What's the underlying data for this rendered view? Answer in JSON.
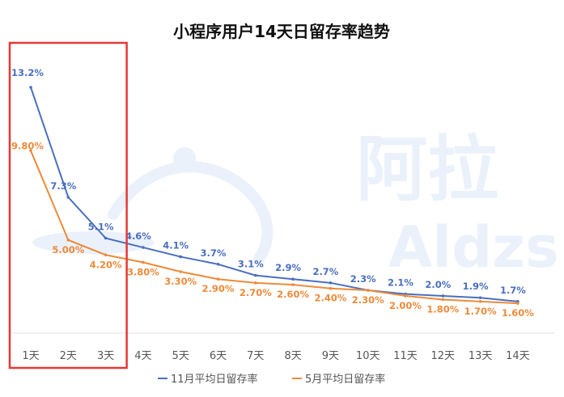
{
  "chart_data": {
    "type": "line",
    "title": "小程序用户14天日留存率趋势",
    "categories": [
      "1天",
      "2天",
      "3天",
      "4天",
      "5天",
      "6天",
      "7天",
      "8天",
      "9天",
      "10天",
      "11天",
      "12天",
      "13天",
      "14天"
    ],
    "series": [
      {
        "name": "11月平均日留存率",
        "color": "#4a6fbf",
        "values": [
          13.2,
          7.3,
          5.1,
          4.6,
          4.1,
          3.7,
          3.1,
          2.9,
          2.7,
          2.3,
          2.1,
          2.0,
          1.9,
          1.7
        ],
        "labels": [
          "13.2%",
          "7.3%",
          "5.1%",
          "4.6%",
          "4.1%",
          "3.7%",
          "3.1%",
          "2.9%",
          "2.7%",
          "2.3%",
          "2.1%",
          "2.0%",
          "1.9%",
          "1.7%"
        ]
      },
      {
        "name": "5月平均日留存率",
        "color": "#ee8a3a",
        "values": [
          9.8,
          5.0,
          4.2,
          3.8,
          3.3,
          2.9,
          2.7,
          2.6,
          2.4,
          2.3,
          2.0,
          1.8,
          1.7,
          1.6
        ],
        "labels": [
          "9.80%",
          "5.00%",
          "4.20%",
          "3.80%",
          "3.30%",
          "2.90%",
          "2.70%",
          "2.60%",
          "2.40%",
          "2.30%",
          "2.00%",
          "1.80%",
          "1.70%",
          "1.60%"
        ]
      }
    ],
    "ylim": [
      0,
      14
    ],
    "highlight": {
      "from": "1天",
      "to": "3天",
      "color": "#e53935"
    },
    "watermark": "阿拉丁 Aldzs",
    "legend": "bottom-center",
    "grid": false
  }
}
